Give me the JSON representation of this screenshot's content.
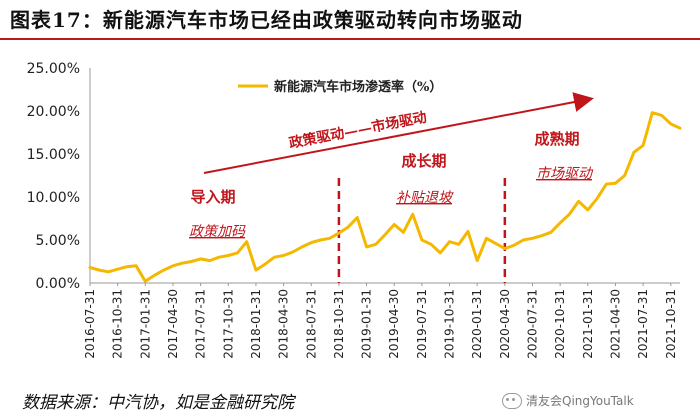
{
  "figure_title": "图表17：新能源汽车市场已经由政策驱动转向市场驱动",
  "source_note": "数据来源：中汽协，如是金融研究院",
  "watermark": {
    "text": "清友会QingYouTalk",
    "icon": "wechat-icon"
  },
  "colors": {
    "line": "#f5b800",
    "dashed": "#c0161b",
    "annotation": "#c0161b",
    "title_rule": "#b71c1c"
  },
  "chart_data": {
    "type": "line",
    "legend": "新能源汽车市场渗透率（%）",
    "ylim": [
      0,
      25
    ],
    "y_ticks": [
      "0.00%",
      "5.00%",
      "10.00%",
      "15.00%",
      "20.00%",
      "25.00%"
    ],
    "y_tick_values": [
      0,
      5,
      10,
      15,
      20,
      25
    ],
    "x_ticks": [
      "2016-07-31",
      "2016-10-31",
      "2017-01-31",
      "2017-04-30",
      "2017-07-31",
      "2017-10-31",
      "2018-01-31",
      "2018-04-30",
      "2018-07-31",
      "2018-10-31",
      "2019-01-31",
      "2019-04-30",
      "2019-07-31",
      "2019-10-31",
      "2020-01-31",
      "2020-04-30",
      "2020-07-31",
      "2020-10-31",
      "2021-01-31",
      "2021-04-30",
      "2021-07-31",
      "2021-10-31"
    ],
    "months": [
      "2016-07",
      "2016-08",
      "2016-09",
      "2016-10",
      "2016-11",
      "2016-12",
      "2017-01",
      "2017-02",
      "2017-03",
      "2017-04",
      "2017-05",
      "2017-06",
      "2017-07",
      "2017-08",
      "2017-09",
      "2017-10",
      "2017-11",
      "2017-12",
      "2018-01",
      "2018-02",
      "2018-03",
      "2018-04",
      "2018-05",
      "2018-06",
      "2018-07",
      "2018-08",
      "2018-09",
      "2018-10",
      "2018-11",
      "2018-12",
      "2019-01",
      "2019-02",
      "2019-03",
      "2019-04",
      "2019-05",
      "2019-06",
      "2019-07",
      "2019-08",
      "2019-09",
      "2019-10",
      "2019-11",
      "2019-12",
      "2020-01",
      "2020-02",
      "2020-03",
      "2020-04",
      "2020-05",
      "2020-06",
      "2020-07",
      "2020-08",
      "2020-09",
      "2020-10",
      "2020-11",
      "2020-12",
      "2021-01",
      "2021-02",
      "2021-03",
      "2021-04",
      "2021-05",
      "2021-06",
      "2021-07",
      "2021-08",
      "2021-09",
      "2021-10",
      "2021-11"
    ],
    "values": [
      1.8,
      1.5,
      1.3,
      1.6,
      1.9,
      2.0,
      0.2,
      0.9,
      1.5,
      2.0,
      2.3,
      2.5,
      2.8,
      2.6,
      3.0,
      3.2,
      3.5,
      4.8,
      1.5,
      2.2,
      3.0,
      3.2,
      3.6,
      4.2,
      4.7,
      5.0,
      5.2,
      5.8,
      6.5,
      7.6,
      4.2,
      4.5,
      5.6,
      6.8,
      5.9,
      8.0,
      5.0,
      4.5,
      3.5,
      4.8,
      4.5,
      6.0,
      2.6,
      5.2,
      4.6,
      4.0,
      4.4,
      5.0,
      5.2,
      5.5,
      5.9,
      7.0,
      8.0,
      9.5,
      8.5,
      9.8,
      11.5,
      11.6,
      12.5,
      15.2,
      16.0,
      19.8,
      19.5,
      18.5,
      18.0
    ],
    "phase_dividers": [
      "2018-10",
      "2020-04"
    ],
    "phases": [
      {
        "title": "导入期",
        "subtitle": "政策加码"
      },
      {
        "title": "成长期",
        "subtitle": "补贴退坡"
      },
      {
        "title": "成熟期",
        "subtitle": "市场驱动"
      }
    ],
    "trend_arrow_label": "政策驱动——市场驱动"
  }
}
